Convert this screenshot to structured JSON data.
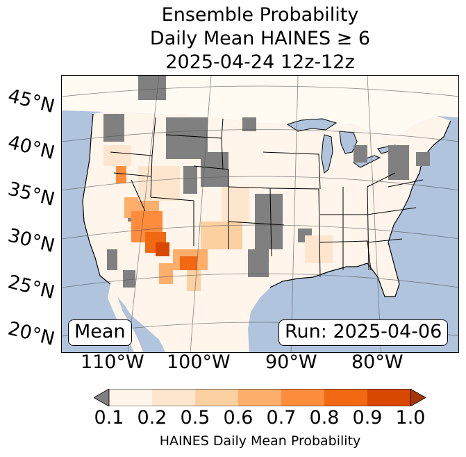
{
  "title": {
    "line1": "Ensemble Probability",
    "line2": "Daily Mean HAINES ≥ 6",
    "line3": "2025-04-24 12z-12z"
  },
  "map": {
    "latitude_labels": [
      "45°N",
      "40°N",
      "35°N",
      "30°N",
      "25°N",
      "20°N"
    ],
    "longitude_labels": [
      "110°W",
      "100°W",
      "90°W",
      "80°W"
    ],
    "mean_label": "Mean",
    "run_label": "Run: 2025-04-06",
    "colors": {
      "ocean": "#b0c4de",
      "land": "#ffffff",
      "missing": "#808080"
    }
  },
  "colorbar": {
    "label": "HAINES Daily Mean Probability",
    "ticks": [
      "0.1",
      "0.2",
      "0.5",
      "0.6",
      "0.7",
      "0.8",
      "0.9",
      "1.0"
    ],
    "colors": [
      "#fff5eb",
      "#fee6ce",
      "#fdd0a2",
      "#fdae6b",
      "#fd8d3c",
      "#f16913",
      "#d94801",
      "#a63603"
    ],
    "under_color": "#808080"
  }
}
